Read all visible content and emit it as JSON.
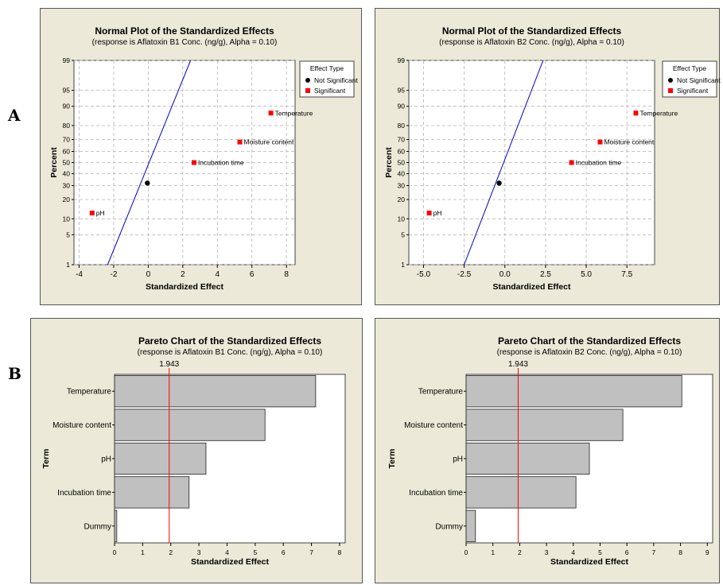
{
  "labels": {
    "A": "A",
    "B": "B"
  },
  "chart_data": [
    {
      "id": "npB1",
      "type": "scatter",
      "title": "Normal Plot of the Standardized Effects",
      "subtitle": "(response is Aflatoxin B1 Conc. (ng/g), Alpha = 0.10)",
      "xlabel": "Standardized Effect",
      "ylabel": "Percent",
      "xlim": [
        -4.3,
        8.5
      ],
      "xticks": [
        "-4",
        "-2",
        "0",
        "2",
        "4",
        "6",
        "8"
      ],
      "xtick_values": [
        -4,
        -2,
        0,
        2,
        4,
        6,
        8
      ],
      "yscale": "normal-probability",
      "yticks": [
        "1",
        "5",
        "10",
        "20",
        "30",
        "40",
        "50",
        "60",
        "70",
        "80",
        "90",
        "95",
        "99"
      ],
      "ytick_values": [
        1,
        5,
        10,
        20,
        30,
        40,
        50,
        60,
        70,
        80,
        90,
        95,
        99
      ],
      "grid": true,
      "legend": {
        "title": "Effect Type",
        "items": [
          "Not Significant",
          "Significant"
        ],
        "position": "top-right"
      },
      "colors": {
        "not_significant": "#000000",
        "significant": "#ff0000",
        "fit_line": "#0000cc"
      },
      "fit_line": {
        "x_at_1": -2.35,
        "x_at_99": 2.45
      },
      "points": [
        {
          "label": "pH",
          "x": -3.25,
          "y": 12.5,
          "type": "Significant"
        },
        {
          "label": "",
          "x": -0.05,
          "y": 32,
          "type": "Not Significant"
        },
        {
          "label": "Incubation time",
          "x": 2.65,
          "y": 50,
          "type": "Significant"
        },
        {
          "label": "Moisture content",
          "x": 5.3,
          "y": 68,
          "type": "Significant"
        },
        {
          "label": "Temperature",
          "x": 7.1,
          "y": 87,
          "type": "Significant"
        }
      ]
    },
    {
      "id": "npB2",
      "type": "scatter",
      "title": "Normal Plot of the Standardized Effects",
      "subtitle": "(response is Aflatoxin B2 Conc. (ng/g), Alpha = 0.10)",
      "xlabel": "Standardized Effect",
      "ylabel": "Percent",
      "xlim": [
        -5.9,
        9.2
      ],
      "xticks": [
        "-5.0",
        "-2.5",
        "0.0",
        "2.5",
        "5.0",
        "7.5"
      ],
      "xtick_values": [
        -5,
        -2.5,
        0,
        2.5,
        5,
        7.5
      ],
      "yscale": "normal-probability",
      "yticks": [
        "1",
        "5",
        "10",
        "20",
        "30",
        "40",
        "50",
        "60",
        "70",
        "80",
        "90",
        "95",
        "99"
      ],
      "ytick_values": [
        1,
        5,
        10,
        20,
        30,
        40,
        50,
        60,
        70,
        80,
        90,
        95,
        99
      ],
      "grid": true,
      "legend": {
        "title": "Effect Type",
        "items": [
          "Not Significant",
          "Significant"
        ],
        "position": "top-right"
      },
      "colors": {
        "not_significant": "#000000",
        "significant": "#ff0000",
        "fit_line": "#0000cc"
      },
      "fit_line": {
        "x_at_1": -2.5,
        "x_at_99": 2.35
      },
      "points": [
        {
          "label": "pH",
          "x": -4.65,
          "y": 12.5,
          "type": "Significant"
        },
        {
          "label": "",
          "x": -0.35,
          "y": 32,
          "type": "Not Significant"
        },
        {
          "label": "Incubation time",
          "x": 4.1,
          "y": 50,
          "type": "Significant"
        },
        {
          "label": "Moisture content",
          "x": 5.85,
          "y": 68,
          "type": "Significant"
        },
        {
          "label": "Temperature",
          "x": 8.05,
          "y": 87,
          "type": "Significant"
        }
      ]
    },
    {
      "id": "parB1",
      "type": "bar",
      "orientation": "horizontal",
      "title": "Pareto Chart of the Standardized Effects",
      "subtitle": "(response is Aflatoxin B1 Conc. (ng/g), Alpha = 0.10)",
      "xlabel": "Standardized Effect",
      "ylabel": "Term",
      "categories": [
        "Temperature",
        "Moisture content",
        "pH",
        "Incubation time",
        "Dummy"
      ],
      "values": [
        7.15,
        5.35,
        3.25,
        2.65,
        0.08
      ],
      "xlim": [
        0,
        8.2
      ],
      "xticks": [
        "0",
        "1",
        "2",
        "3",
        "4",
        "5",
        "6",
        "7",
        "8"
      ],
      "xtick_values": [
        0,
        1,
        2,
        3,
        4,
        5,
        6,
        7,
        8
      ],
      "reference_line": {
        "value": 1.943,
        "label": "1.943"
      },
      "colors": {
        "bar": "#c0c0c0",
        "reference": "#ff0000"
      }
    },
    {
      "id": "parB2",
      "type": "bar",
      "orientation": "horizontal",
      "title": "Pareto Chart of the Standardized Effects",
      "subtitle": "(response is Aflatoxin B2 Conc. (ng/g), Alpha = 0.10)",
      "xlabel": "Standardized Effect",
      "ylabel": "Term",
      "categories": [
        "Temperature",
        "Moisture content",
        "pH",
        "Incubation time",
        "Dummy"
      ],
      "values": [
        8.05,
        5.85,
        4.6,
        4.1,
        0.35
      ],
      "xlim": [
        0,
        9.2
      ],
      "xticks": [
        "0",
        "1",
        "2",
        "3",
        "4",
        "5",
        "6",
        "7",
        "8",
        "9"
      ],
      "xtick_values": [
        0,
        1,
        2,
        3,
        4,
        5,
        6,
        7,
        8,
        9
      ],
      "reference_line": {
        "value": 1.943,
        "label": "1.943"
      },
      "colors": {
        "bar": "#c0c0c0",
        "reference": "#ff0000"
      }
    }
  ]
}
